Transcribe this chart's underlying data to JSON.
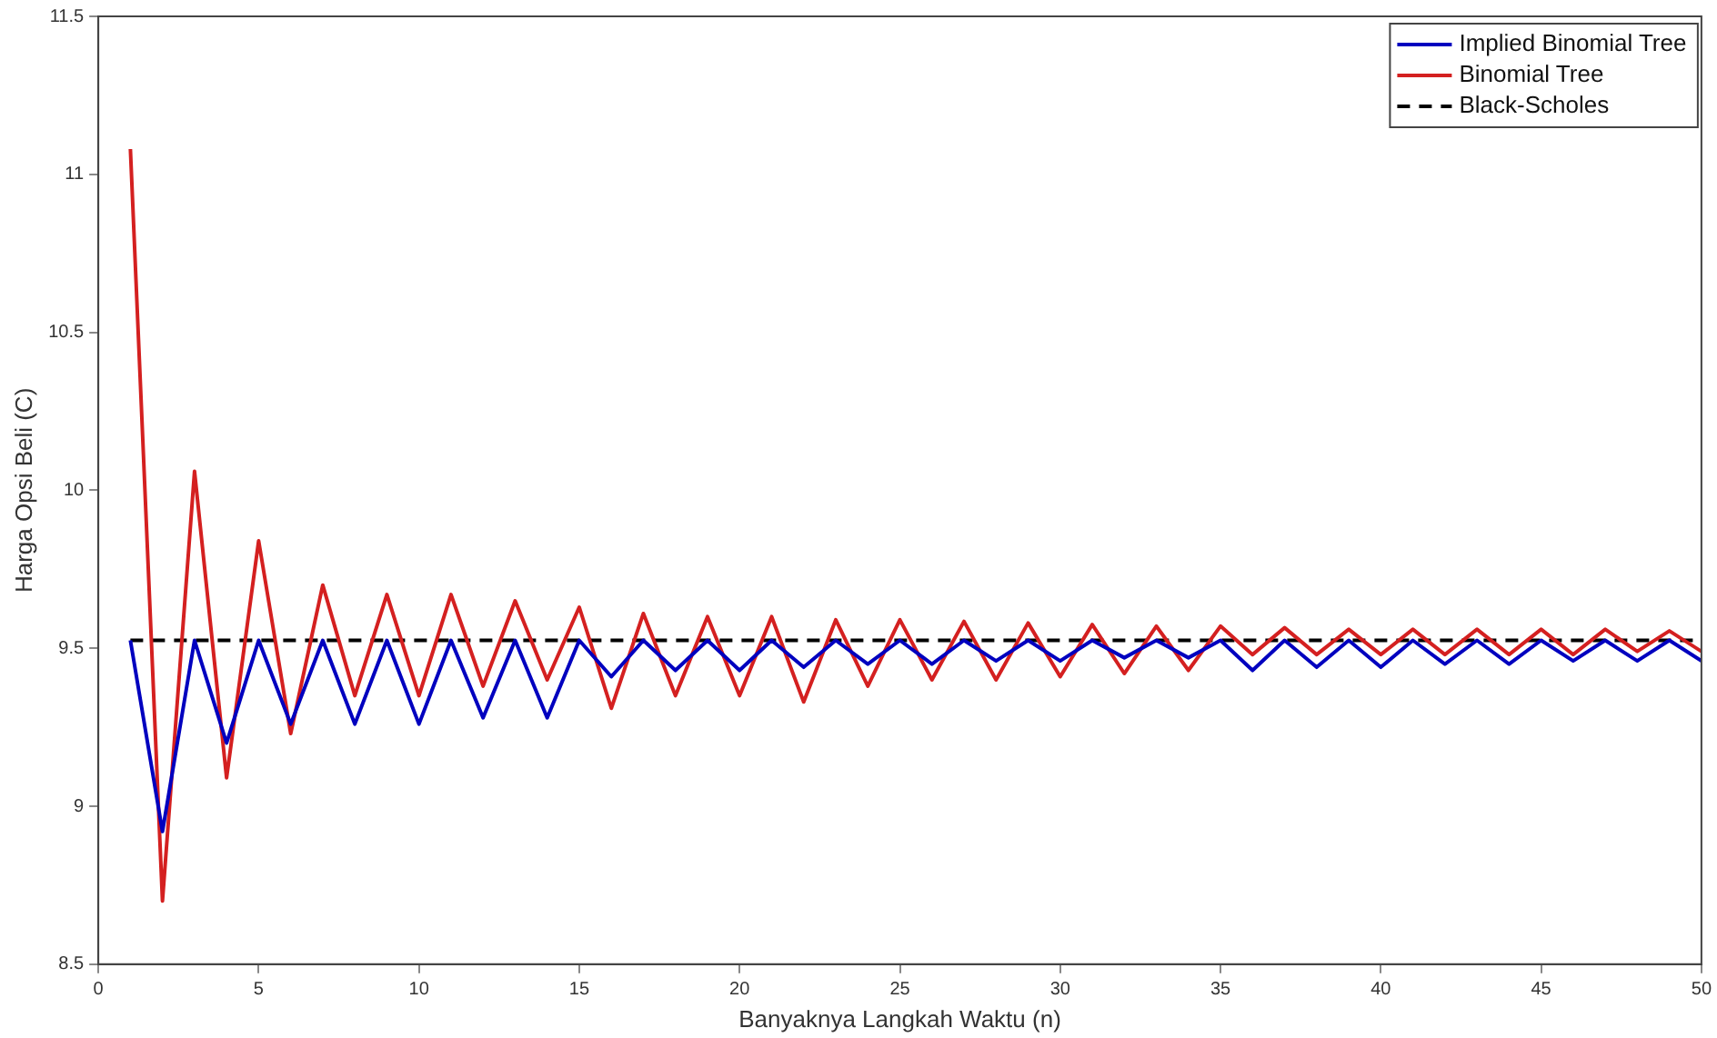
{
  "chart_data": {
    "type": "line",
    "xlabel": "Banyaknya Langkah Waktu (n)",
    "ylabel": "Harga Opsi Beli (C)",
    "xlim": [
      0,
      50
    ],
    "xticks": [
      0,
      5,
      10,
      15,
      20,
      25,
      30,
      35,
      40,
      45,
      50
    ],
    "ylim": [
      8.5,
      11.5
    ],
    "yticks": [
      8.5,
      9,
      9.5,
      10,
      10.5,
      11,
      11.5
    ],
    "grid": false,
    "legend": "top right",
    "marker": "none",
    "x": [
      1,
      2,
      3,
      4,
      5,
      6,
      7,
      8,
      9,
      10,
      11,
      12,
      13,
      14,
      15,
      16,
      17,
      18,
      19,
      20,
      21,
      22,
      23,
      24,
      25,
      26,
      27,
      28,
      29,
      30,
      31,
      32,
      33,
      34,
      35,
      36,
      37,
      38,
      39,
      40,
      41,
      42,
      43,
      44,
      45,
      46,
      47,
      48,
      49,
      50
    ],
    "series": [
      {
        "name": "Implied Binomial Tree",
        "color": "#0000bf",
        "values": [
          9.525,
          8.92,
          9.525,
          9.2,
          9.525,
          9.26,
          9.525,
          9.26,
          9.525,
          9.26,
          9.525,
          9.28,
          9.525,
          9.28,
          9.525,
          9.41,
          9.525,
          9.43,
          9.525,
          9.43,
          9.525,
          9.44,
          9.525,
          9.45,
          9.525,
          9.45,
          9.525,
          9.46,
          9.525,
          9.46,
          9.525,
          9.47,
          9.525,
          9.47,
          9.525,
          9.43,
          9.525,
          9.44,
          9.525,
          9.44,
          9.525,
          9.45,
          9.525,
          9.45,
          9.525,
          9.46,
          9.525,
          9.46,
          9.525,
          9.46
        ]
      },
      {
        "name": "Binomial Tree",
        "color": "#d42020",
        "values": [
          11.08,
          8.7,
          10.06,
          9.09,
          9.84,
          9.23,
          9.7,
          9.35,
          9.67,
          9.35,
          9.67,
          9.38,
          9.65,
          9.4,
          9.63,
          9.31,
          9.61,
          9.35,
          9.6,
          9.35,
          9.6,
          9.33,
          9.59,
          9.38,
          9.59,
          9.4,
          9.585,
          9.4,
          9.58,
          9.41,
          9.575,
          9.42,
          9.57,
          9.43,
          9.57,
          9.48,
          9.565,
          9.48,
          9.56,
          9.48,
          9.56,
          9.48,
          9.56,
          9.48,
          9.56,
          9.48,
          9.56,
          9.49,
          9.555,
          9.49
        ]
      },
      {
        "name": "Black-Scholes",
        "color": "#000000",
        "line_style": "dashed",
        "x": [
          1,
          50
        ],
        "values": [
          9.525,
          9.525
        ]
      }
    ]
  }
}
